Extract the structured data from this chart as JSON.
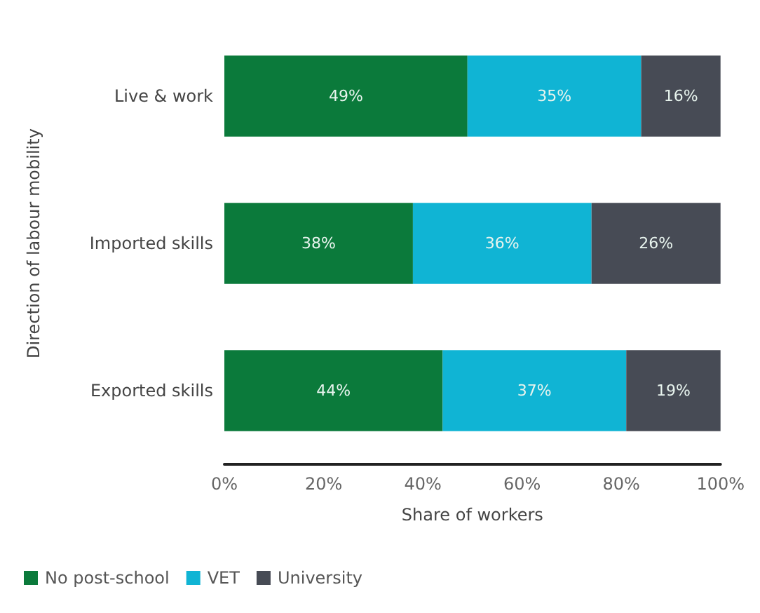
{
  "chart_data": {
    "type": "bar",
    "orientation": "horizontal",
    "stacked": true,
    "xlabel": "Share of workers",
    "ylabel": "Direction of labour mobility",
    "categories": [
      "Live & work",
      "Imported skills",
      "Exported skills"
    ],
    "series": [
      {
        "name": "No post-school",
        "color": "#0b7a3b",
        "values": [
          49,
          38,
          44
        ],
        "value_labels": [
          "49%",
          "38%",
          "44%"
        ]
      },
      {
        "name": "VET",
        "color": "#10b4d4",
        "values": [
          35,
          36,
          37
        ],
        "value_labels": [
          "35%",
          "36%",
          "37%"
        ]
      },
      {
        "name": "University",
        "color": "#474b55",
        "values": [
          16,
          26,
          19
        ],
        "value_labels": [
          "16%",
          "26%",
          "19%"
        ]
      }
    ],
    "xlim": [
      0,
      100
    ],
    "xticks": [
      {
        "value": 0,
        "label": "0%"
      },
      {
        "value": 20,
        "label": "20%"
      },
      {
        "value": 40,
        "label": "40%"
      },
      {
        "value": 60,
        "label": "60%"
      },
      {
        "value": 80,
        "label": "80%"
      },
      {
        "value": 100,
        "label": "100%"
      }
    ],
    "grid": false,
    "legend": "bottom left"
  }
}
